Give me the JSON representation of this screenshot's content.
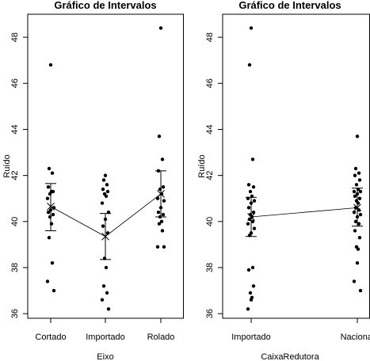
{
  "chart_data": [
    {
      "type": "scatter",
      "title": "Gráfico de Intervalos",
      "xlabel": "Eixo",
      "ylabel": "Ruído",
      "categories": [
        "Cortado",
        "Importado",
        "Rolado"
      ],
      "ylim": [
        35.8,
        49.0
      ],
      "yticks": [
        36,
        38,
        40,
        42,
        44,
        46,
        48
      ],
      "grid": false,
      "points": [
        [
          46.8,
          42.3,
          42.1,
          41.5,
          41.3,
          41.2,
          41.3,
          41.0,
          40.6,
          40.5,
          40.4,
          40.3,
          40.2,
          39.9,
          39.3,
          38.2,
          37.4,
          37.0
        ],
        [
          42.0,
          41.8,
          41.6,
          41.4,
          41.3,
          41.2,
          41.1,
          40.8,
          40.4,
          40.1,
          39.8,
          39.5,
          38.4,
          38.0,
          37.2,
          36.9,
          36.6,
          36.2
        ],
        [
          48.4,
          43.7,
          42.7,
          42.2,
          41.5,
          41.4,
          41.2,
          41.0,
          40.9,
          40.6,
          40.4,
          40.3,
          40.2,
          40.0,
          39.9,
          39.6,
          38.9,
          38.9
        ]
      ],
      "means": [
        40.65,
        39.35,
        41.2
      ],
      "ci_lower": [
        39.6,
        38.35,
        40.2
      ],
      "ci_upper": [
        41.65,
        40.35,
        42.2
      ]
    },
    {
      "type": "scatter",
      "title": "Gráfico de Intervalos",
      "xlabel": "CaixaRedutora",
      "ylabel": "Ruído",
      "categories": [
        "Importado",
        "Nacional"
      ],
      "ylim": [
        35.8,
        49.0
      ],
      "yticks": [
        36,
        38,
        40,
        42,
        44,
        46,
        48
      ],
      "grid": false,
      "points": [
        [
          48.4,
          46.8,
          42.7,
          41.6,
          41.5,
          41.3,
          41.1,
          41.0,
          40.9,
          40.8,
          40.6,
          40.4,
          40.3,
          40.2,
          40.1,
          40.0,
          39.9,
          39.7,
          39.5,
          39.4,
          38.0,
          37.9,
          37.2,
          36.9,
          36.7,
          36.6,
          36.2
        ],
        [
          43.7,
          42.3,
          42.1,
          42.0,
          41.8,
          41.6,
          41.4,
          41.3,
          41.3,
          41.2,
          41.1,
          41.0,
          40.9,
          40.8,
          40.6,
          40.5,
          40.4,
          40.3,
          40.2,
          40.0,
          39.9,
          39.6,
          39.3,
          38.9,
          38.8,
          38.2,
          37.4,
          37.0
        ]
      ],
      "means": [
        40.2,
        40.6
      ],
      "ci_lower": [
        39.35,
        39.8
      ],
      "ci_upper": [
        41.05,
        41.45
      ]
    }
  ]
}
